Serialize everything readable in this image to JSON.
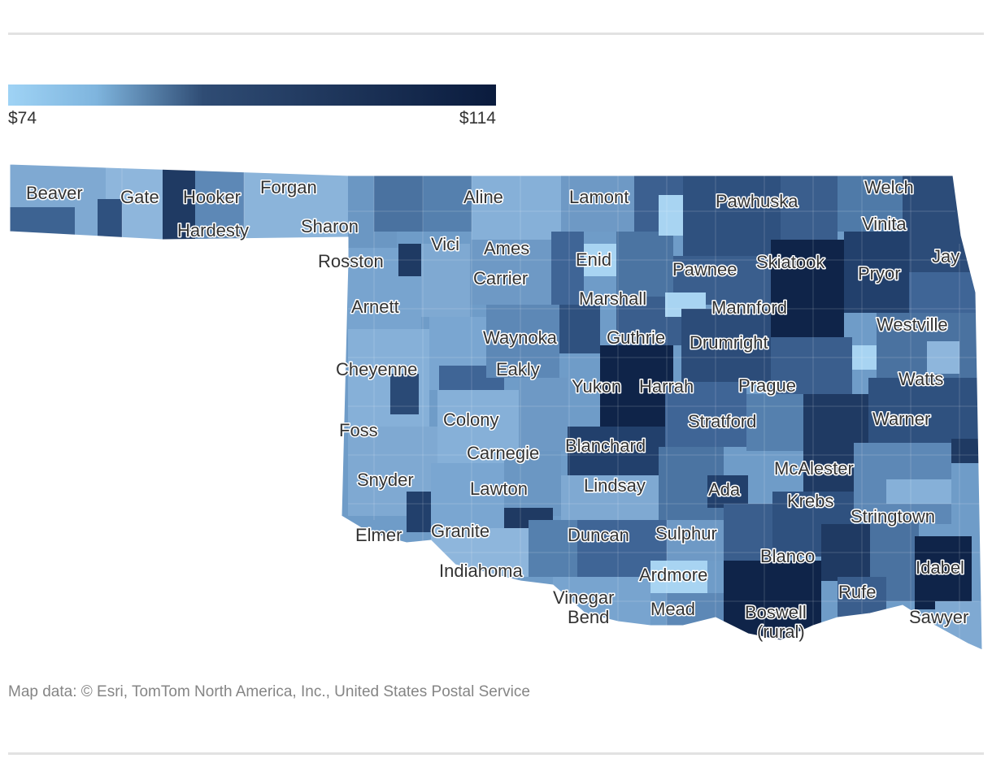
{
  "legend": {
    "min_label": "$74",
    "max_label": "$114",
    "min_value": 74,
    "max_value": 114,
    "color_light": "#9fd3f5",
    "color_mid": "#2f4c74",
    "color_dark": "#0a1b3d"
  },
  "cities": [
    {
      "id": "beaver",
      "name": "Beaver"
    },
    {
      "id": "gate",
      "name": "Gate"
    },
    {
      "id": "hooker",
      "name": "Hooker"
    },
    {
      "id": "forgan",
      "name": "Forgan"
    },
    {
      "id": "hardesty",
      "name": "Hardesty"
    },
    {
      "id": "sharon",
      "name": "Sharon"
    },
    {
      "id": "aline",
      "name": "Aline"
    },
    {
      "id": "lamont",
      "name": "Lamont"
    },
    {
      "id": "pawhuska",
      "name": "Pawhuska"
    },
    {
      "id": "welch",
      "name": "Welch"
    },
    {
      "id": "vinita",
      "name": "Vinita"
    },
    {
      "id": "vici",
      "name": "Vici"
    },
    {
      "id": "ames",
      "name": "Ames"
    },
    {
      "id": "enid",
      "name": "Enid"
    },
    {
      "id": "rosston",
      "name": "Rosston"
    },
    {
      "id": "carrier",
      "name": "Carrier"
    },
    {
      "id": "pawnee",
      "name": "Pawnee"
    },
    {
      "id": "skiatook",
      "name": "Skiatook"
    },
    {
      "id": "pryor",
      "name": "Pryor"
    },
    {
      "id": "jay",
      "name": "Jay"
    },
    {
      "id": "marshall",
      "name": "Marshall"
    },
    {
      "id": "arnett",
      "name": "Arnett"
    },
    {
      "id": "mannford",
      "name": "Mannford"
    },
    {
      "id": "westville",
      "name": "Westville"
    },
    {
      "id": "waynoka",
      "name": "Waynoka"
    },
    {
      "id": "guthrie",
      "name": "Guthrie"
    },
    {
      "id": "drumright",
      "name": "Drumright"
    },
    {
      "id": "cheyenne",
      "name": "Cheyenne"
    },
    {
      "id": "eakly",
      "name": "Eakly"
    },
    {
      "id": "watts",
      "name": "Watts"
    },
    {
      "id": "yukon",
      "name": "Yukon"
    },
    {
      "id": "harrah",
      "name": "Harrah"
    },
    {
      "id": "prague",
      "name": "Prague"
    },
    {
      "id": "colony",
      "name": "Colony"
    },
    {
      "id": "stratford",
      "name": "Stratford"
    },
    {
      "id": "warner",
      "name": "Warner"
    },
    {
      "id": "foss",
      "name": "Foss"
    },
    {
      "id": "blanchard",
      "name": "Blanchard"
    },
    {
      "id": "carnegie",
      "name": "Carnegie"
    },
    {
      "id": "mcalester",
      "name": "McAlester"
    },
    {
      "id": "snyder",
      "name": "Snyder"
    },
    {
      "id": "lindsay",
      "name": "Lindsay"
    },
    {
      "id": "ada",
      "name": "Ada"
    },
    {
      "id": "lawton",
      "name": "Lawton"
    },
    {
      "id": "krebs",
      "name": "Krebs"
    },
    {
      "id": "stringtown",
      "name": "Stringtown"
    },
    {
      "id": "granite",
      "name": "Granite"
    },
    {
      "id": "elmer",
      "name": "Elmer"
    },
    {
      "id": "duncan",
      "name": "Duncan"
    },
    {
      "id": "sulphur",
      "name": "Sulphur"
    },
    {
      "id": "blanco",
      "name": "Blanco"
    },
    {
      "id": "idabel",
      "name": "Idabel"
    },
    {
      "id": "indiahoma",
      "name": "Indiahoma"
    },
    {
      "id": "ardmore",
      "name": "Ardmore"
    },
    {
      "id": "rufe",
      "name": "Rufe"
    },
    {
      "id": "vinegar_bend_1",
      "name": "Vinegar"
    },
    {
      "id": "vinegar_bend_2",
      "name": "Bend"
    },
    {
      "id": "mead",
      "name": "Mead"
    },
    {
      "id": "boswell_1",
      "name": "Boswell"
    },
    {
      "id": "boswell_2",
      "name": "(rural)"
    },
    {
      "id": "sawyer",
      "name": "Sawyer"
    }
  ],
  "credit": "Map data: © Esri, TomTom North America, Inc., United States Postal Service"
}
